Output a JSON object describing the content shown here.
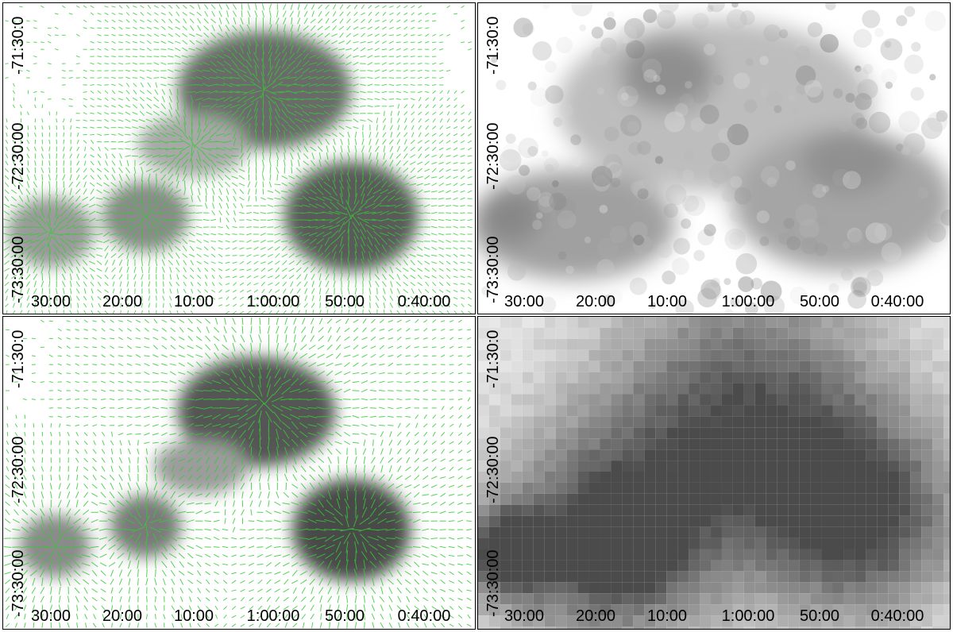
{
  "panels": [
    {
      "id": "top-left",
      "xticks": [
        "30:00",
        "20:00",
        "10:00",
        "1:00:00",
        "50:00",
        "0:40:00"
      ],
      "yticks": [
        "-71:30:0",
        "-72:30:00",
        "-73:30:00"
      ],
      "overlay_color": "#33cc33",
      "content": "grayscale image with green vector overlay"
    },
    {
      "id": "top-right",
      "xticks": [
        "30:00",
        "20:00",
        "10:00",
        "1:00:00",
        "50:00",
        "0:40:00"
      ],
      "yticks": [
        "-71:30:0",
        "-72:30:00",
        "-73:30:00"
      ],
      "content": "grayscale image"
    },
    {
      "id": "bottom-left",
      "xticks": [
        "30:00",
        "20:00",
        "10:00",
        "1:00:00",
        "50:00",
        "0:40:00"
      ],
      "yticks": [
        "-71:30:0",
        "-72:30:00",
        "-73:30:00"
      ],
      "overlay_color": "#33cc33",
      "content": "grayscale image with green vector overlay"
    },
    {
      "id": "bottom-right",
      "xticks": [
        "30:00",
        "20:00",
        "10:00",
        "1:00:00",
        "50:00",
        "0:40:00"
      ],
      "yticks": [
        "-71:30:0",
        "-72:30:00",
        "-73:30:00"
      ],
      "content": "pixelated grayscale image"
    }
  ]
}
